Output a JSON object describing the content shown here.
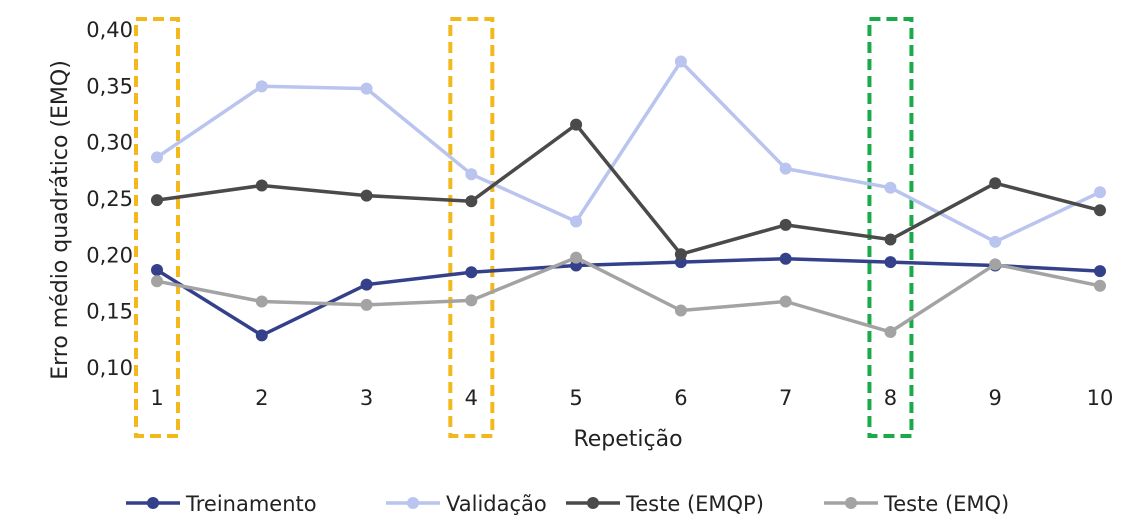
{
  "chart_data": {
    "type": "line",
    "title": "",
    "xlabel": "Repetição",
    "ylabel": "Erro médio quadrático (EMQ)",
    "categories": [
      "1",
      "2",
      "3",
      "4",
      "5",
      "6",
      "7",
      "8",
      "9",
      "10"
    ],
    "ylim": [
      0.1,
      0.4
    ],
    "yticks": [
      "0,10",
      "0,15",
      "0,20",
      "0,25",
      "0,30",
      "0,35",
      "0,40"
    ],
    "grid": false,
    "legend_position": "bottom",
    "series": [
      {
        "name": "Treinamento",
        "color": "#34418a",
        "values": [
          0.187,
          0.129,
          0.174,
          0.185,
          0.191,
          0.194,
          0.197,
          0.194,
          0.191,
          0.186
        ]
      },
      {
        "name": "Validação",
        "color": "#b9c4ef",
        "values": [
          0.287,
          0.35,
          0.348,
          0.272,
          0.23,
          0.372,
          0.277,
          0.26,
          0.212,
          0.256
        ]
      },
      {
        "name": "Teste (EMQP)",
        "color": "#4a4a4a",
        "values": [
          0.249,
          0.262,
          0.253,
          0.248,
          0.316,
          0.201,
          0.227,
          0.214,
          0.264,
          0.24
        ]
      },
      {
        "name": "Teste (EMQ)",
        "color": "#a3a3a3",
        "values": [
          0.177,
          0.159,
          0.156,
          0.16,
          0.198,
          0.151,
          0.159,
          0.132,
          0.192,
          0.173
        ]
      }
    ],
    "highlights": [
      {
        "category": "1",
        "color": "#f2b81c"
      },
      {
        "category": "4",
        "color": "#f2b81c"
      },
      {
        "category": "8",
        "color": "#1aaa4a"
      }
    ]
  }
}
